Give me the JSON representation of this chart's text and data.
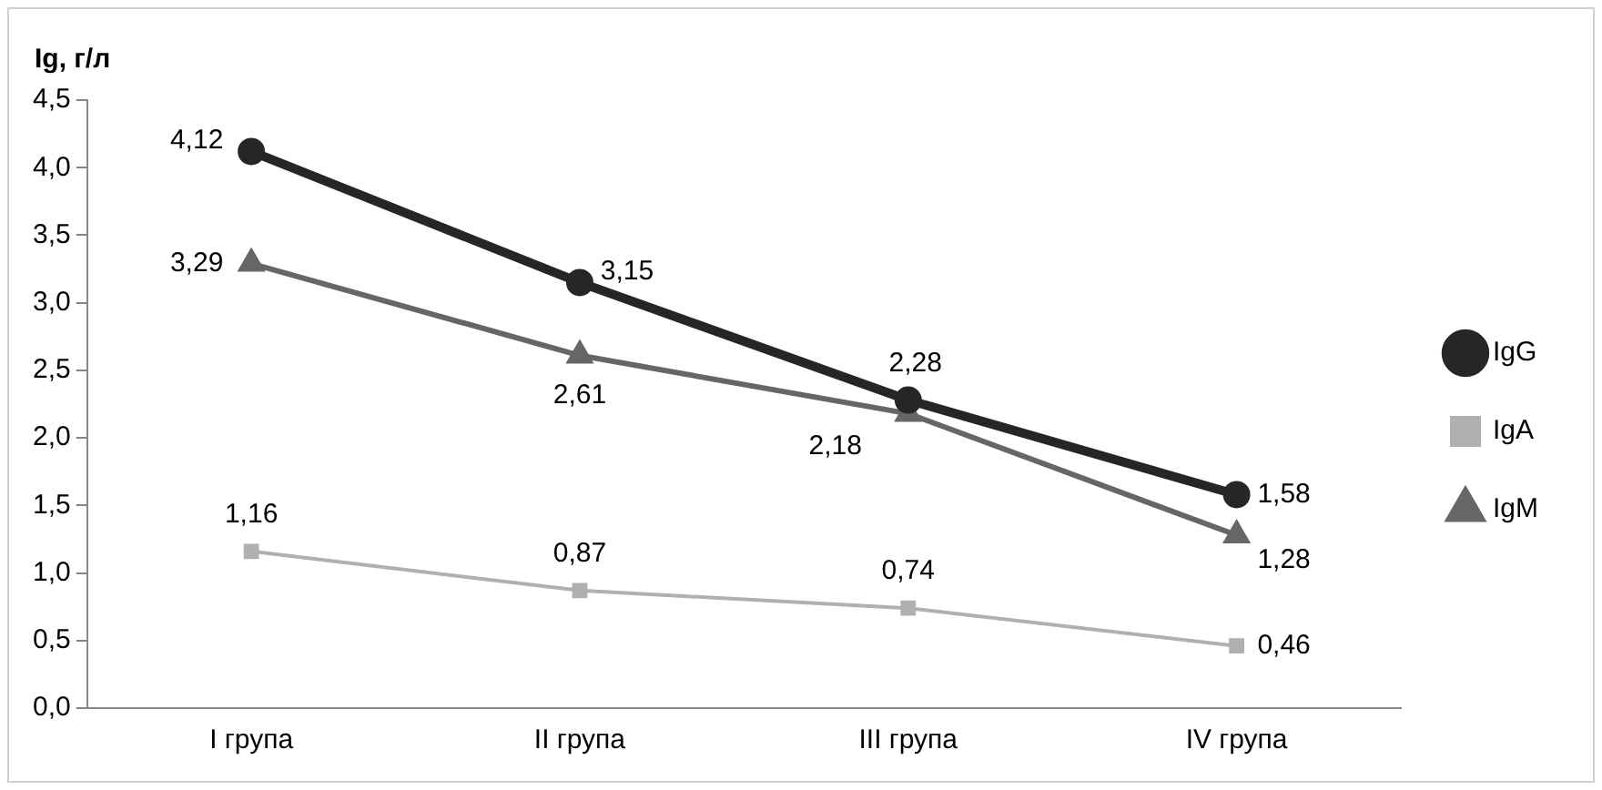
{
  "chart_data": {
    "type": "line",
    "ylabel": "Ig, г/л",
    "categories": [
      "I група",
      "II група",
      "III група",
      "IV група"
    ],
    "series": [
      {
        "name": "IgG",
        "color": "#262626",
        "marker": "circle",
        "values": [
          4.12,
          3.15,
          2.28,
          1.58
        ],
        "value_labels": [
          "4,12",
          "3,15",
          "2,28",
          "1,58"
        ]
      },
      {
        "name": "IgA",
        "color": "#b0b0b0",
        "marker": "square",
        "values": [
          1.16,
          0.87,
          0.74,
          0.46
        ],
        "value_labels": [
          "1,16",
          "0,87",
          "0,74",
          "0,46"
        ]
      },
      {
        "name": "IgM",
        "color": "#666666",
        "marker": "triangle",
        "values": [
          3.29,
          2.61,
          2.18,
          1.28
        ],
        "value_labels": [
          "3,29",
          "2,61",
          "2,18",
          "1,28"
        ]
      }
    ],
    "ylim": [
      0,
      4.5
    ],
    "yticks": [
      {
        "value": 0,
        "label": "0,0"
      },
      {
        "value": 0.5,
        "label": "0,5"
      },
      {
        "value": 1,
        "label": "1,0"
      },
      {
        "value": 1.5,
        "label": "1,5"
      },
      {
        "value": 2,
        "label": "2,0"
      },
      {
        "value": 2.5,
        "label": "2,5"
      },
      {
        "value": 3,
        "label": "3,0"
      },
      {
        "value": 3.5,
        "label": "3,5"
      },
      {
        "value": 4,
        "label": "4,0"
      },
      {
        "value": 4.5,
        "label": "4,5"
      }
    ],
    "grid": false,
    "legend": "right"
  }
}
